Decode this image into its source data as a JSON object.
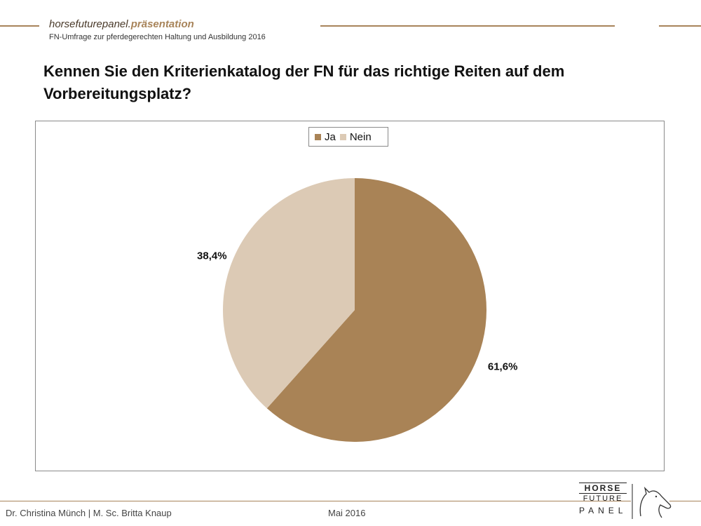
{
  "header": {
    "brand_main": "horsefuturepanel.",
    "brand_accent": "präsentation",
    "subtitle": "FN-Umfrage zur pferdegerechten Haltung und Ausbildung 2016"
  },
  "slide": {
    "question": "Kennen Sie den Kriterienkatalog der FN für das richtige Reiten auf dem Vorbereitungsplatz?"
  },
  "chart_data": {
    "type": "pie",
    "categories": [
      "Ja",
      "Nein"
    ],
    "values": [
      61.6,
      38.4
    ],
    "labels": [
      "61,6%",
      "38,4%"
    ],
    "colors": [
      "#a98356",
      "#dccab5"
    ],
    "legend_position": "top-center"
  },
  "footer": {
    "authors": "Dr. Christina Münch | M. Sc. Britta Knaup",
    "date": "Mai 2016"
  },
  "logo": {
    "line1": "HORSE",
    "line2": "FUTURE",
    "line3": "PANEL"
  }
}
